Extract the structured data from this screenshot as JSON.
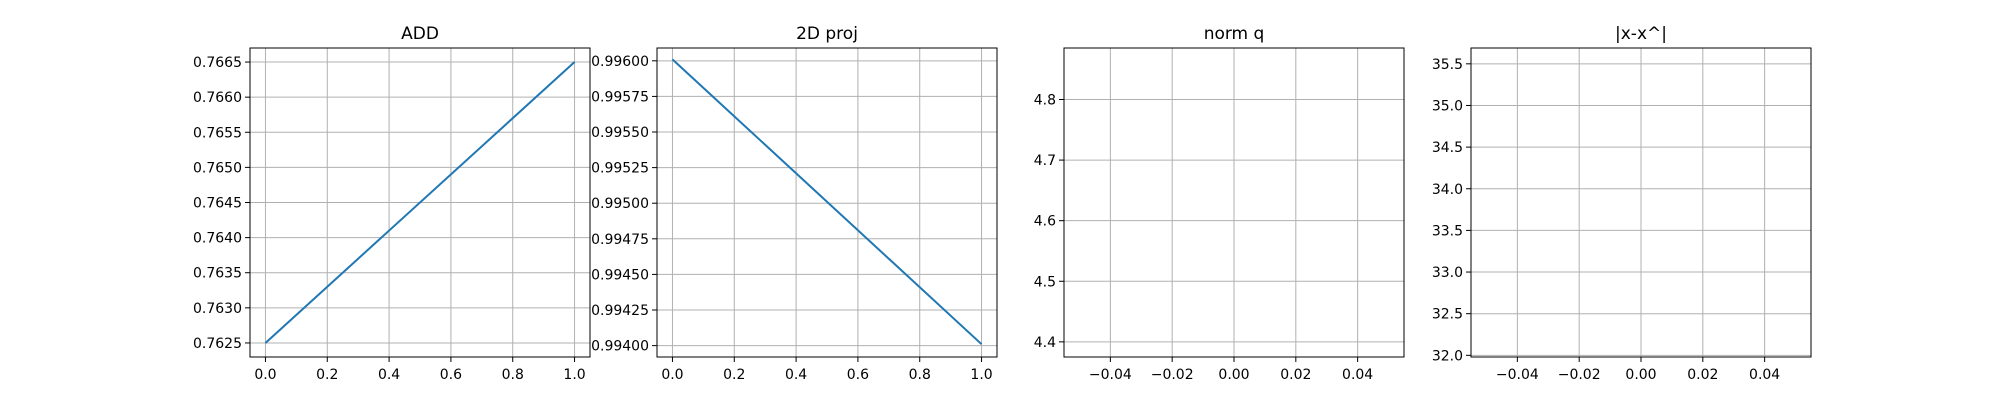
{
  "chart_data": [
    {
      "type": "line",
      "title": "ADD",
      "xlabel": "",
      "ylabel": "",
      "xlim": [
        -0.05,
        1.05
      ],
      "ylim": [
        0.7623,
        0.7667
      ],
      "xticks": [
        0.0,
        0.2,
        0.4,
        0.6,
        0.8,
        1.0
      ],
      "xtick_labels": [
        "0.0",
        "0.2",
        "0.4",
        "0.6",
        "0.8",
        "1.0"
      ],
      "yticks": [
        0.7625,
        0.763,
        0.7635,
        0.764,
        0.7645,
        0.765,
        0.7655,
        0.766,
        0.7665
      ],
      "ytick_labels": [
        "0.7625",
        "0.7630",
        "0.7635",
        "0.7640",
        "0.7645",
        "0.7650",
        "0.7655",
        "0.7660",
        "0.7665"
      ],
      "grid": true,
      "series": [
        {
          "x": [
            0,
            1
          ],
          "y": [
            0.7625,
            0.7665
          ]
        }
      ]
    },
    {
      "type": "line",
      "title": "2D proj",
      "xlabel": "",
      "ylabel": "",
      "xlim": [
        -0.05,
        1.05
      ],
      "ylim": [
        0.99392,
        0.99609
      ],
      "xticks": [
        0.0,
        0.2,
        0.4,
        0.6,
        0.8,
        1.0
      ],
      "xtick_labels": [
        "0.0",
        "0.2",
        "0.4",
        "0.6",
        "0.8",
        "1.0"
      ],
      "yticks": [
        0.994,
        0.99425,
        0.9945,
        0.99475,
        0.995,
        0.99525,
        0.9955,
        0.99575,
        0.996
      ],
      "ytick_labels": [
        "0.99400",
        "0.99425",
        "0.99450",
        "0.99475",
        "0.99500",
        "0.99525",
        "0.99550",
        "0.99575",
        "0.99600"
      ],
      "grid": true,
      "series": [
        {
          "x": [
            0,
            1
          ],
          "y": [
            0.99601,
            0.99401
          ]
        }
      ]
    },
    {
      "type": "line",
      "title": "norm q",
      "xlabel": "",
      "ylabel": "",
      "xlim": [
        -0.055,
        0.055
      ],
      "ylim": [
        4.375,
        4.885
      ],
      "xticks": [
        -0.04,
        -0.02,
        0.0,
        0.02,
        0.04
      ],
      "xtick_labels": [
        "−0.04",
        "−0.02",
        "0.00",
        "0.02",
        "0.04"
      ],
      "yticks": [
        4.4,
        4.5,
        4.6,
        4.7,
        4.8
      ],
      "ytick_labels": [
        "4.4",
        "4.5",
        "4.6",
        "4.7",
        "4.8"
      ],
      "grid": true,
      "series": []
    },
    {
      "type": "line",
      "title": "|x-x^|",
      "xlabel": "",
      "ylabel": "",
      "xlim": [
        -0.055,
        0.055
      ],
      "ylim": [
        31.98,
        35.69
      ],
      "xticks": [
        -0.04,
        -0.02,
        0.0,
        0.02,
        0.04
      ],
      "xtick_labels": [
        "−0.04",
        "−0.02",
        "0.00",
        "0.02",
        "0.04"
      ],
      "yticks": [
        32.0,
        32.5,
        33.0,
        33.5,
        34.0,
        34.5,
        35.0,
        35.5
      ],
      "ytick_labels": [
        "32.0",
        "32.5",
        "33.0",
        "33.5",
        "34.0",
        "34.5",
        "35.0",
        "35.5"
      ],
      "grid": true,
      "series": []
    }
  ],
  "colors": {
    "line": "#1f77b4",
    "grid": "#b0b0b0",
    "axes": "#000000"
  }
}
